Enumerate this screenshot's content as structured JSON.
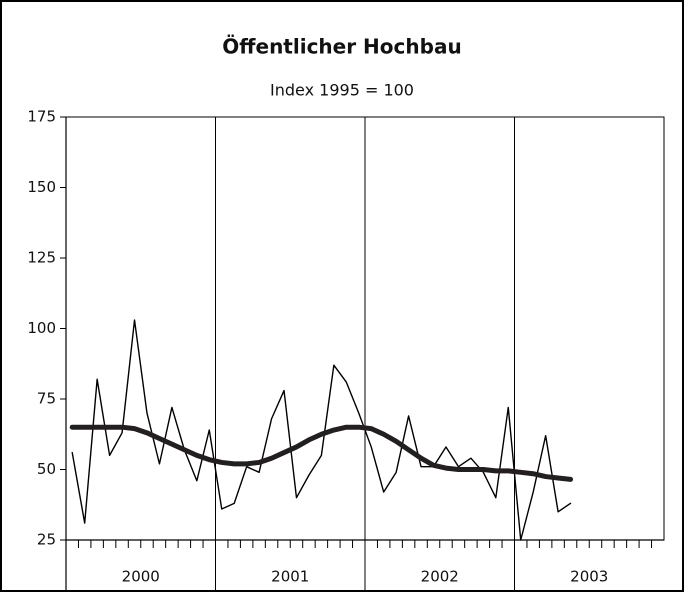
{
  "chart_data": {
    "type": "line",
    "title": "Öffentlicher Hochbau",
    "subtitle": "Index 1995 = 100",
    "categories": [
      null,
      null,
      null,
      null,
      null,
      null,
      null,
      null,
      null,
      null,
      null,
      null,
      null,
      null,
      null,
      null,
      null,
      null,
      null,
      null,
      null,
      null,
      null,
      null,
      null,
      null,
      null,
      null,
      null,
      null,
      null,
      null,
      null,
      null,
      null,
      null,
      null,
      null,
      null,
      null,
      null,
      null,
      null,
      null,
      null,
      null,
      null,
      null
    ],
    "year_labels": [
      "2000",
      "2001",
      "2002",
      "2003"
    ],
    "series": [
      {
        "color": "#000000",
        "values": [
          56,
          31,
          82,
          55,
          63,
          103,
          70,
          52,
          72,
          57,
          46,
          64,
          36,
          38,
          51,
          49,
          68,
          78,
          40,
          48,
          55,
          87,
          81,
          70,
          58,
          42,
          49,
          69,
          51,
          51,
          58,
          51,
          54,
          49,
          40,
          72,
          25,
          42,
          62,
          35,
          38,
          null,
          null,
          null,
          null,
          null,
          null,
          null
        ]
      },
      {
        "color": "#231f20",
        "values": [
          65,
          65,
          65,
          65,
          65,
          64.5,
          63,
          61,
          59,
          57,
          55,
          53.5,
          52.5,
          52,
          52,
          52.5,
          54,
          56,
          58,
          60.5,
          62.5,
          64,
          65,
          65,
          64.5,
          62.5,
          60,
          57,
          54,
          51.5,
          50.5,
          50,
          50,
          50,
          49.5,
          49.5,
          49,
          48.5,
          47.5,
          47,
          46.5,
          null,
          null,
          null,
          null,
          null,
          null,
          null
        ]
      }
    ],
    "ylim": [
      25,
      175
    ],
    "yticks": [
      25,
      50,
      75,
      100,
      125,
      150,
      175
    ]
  }
}
